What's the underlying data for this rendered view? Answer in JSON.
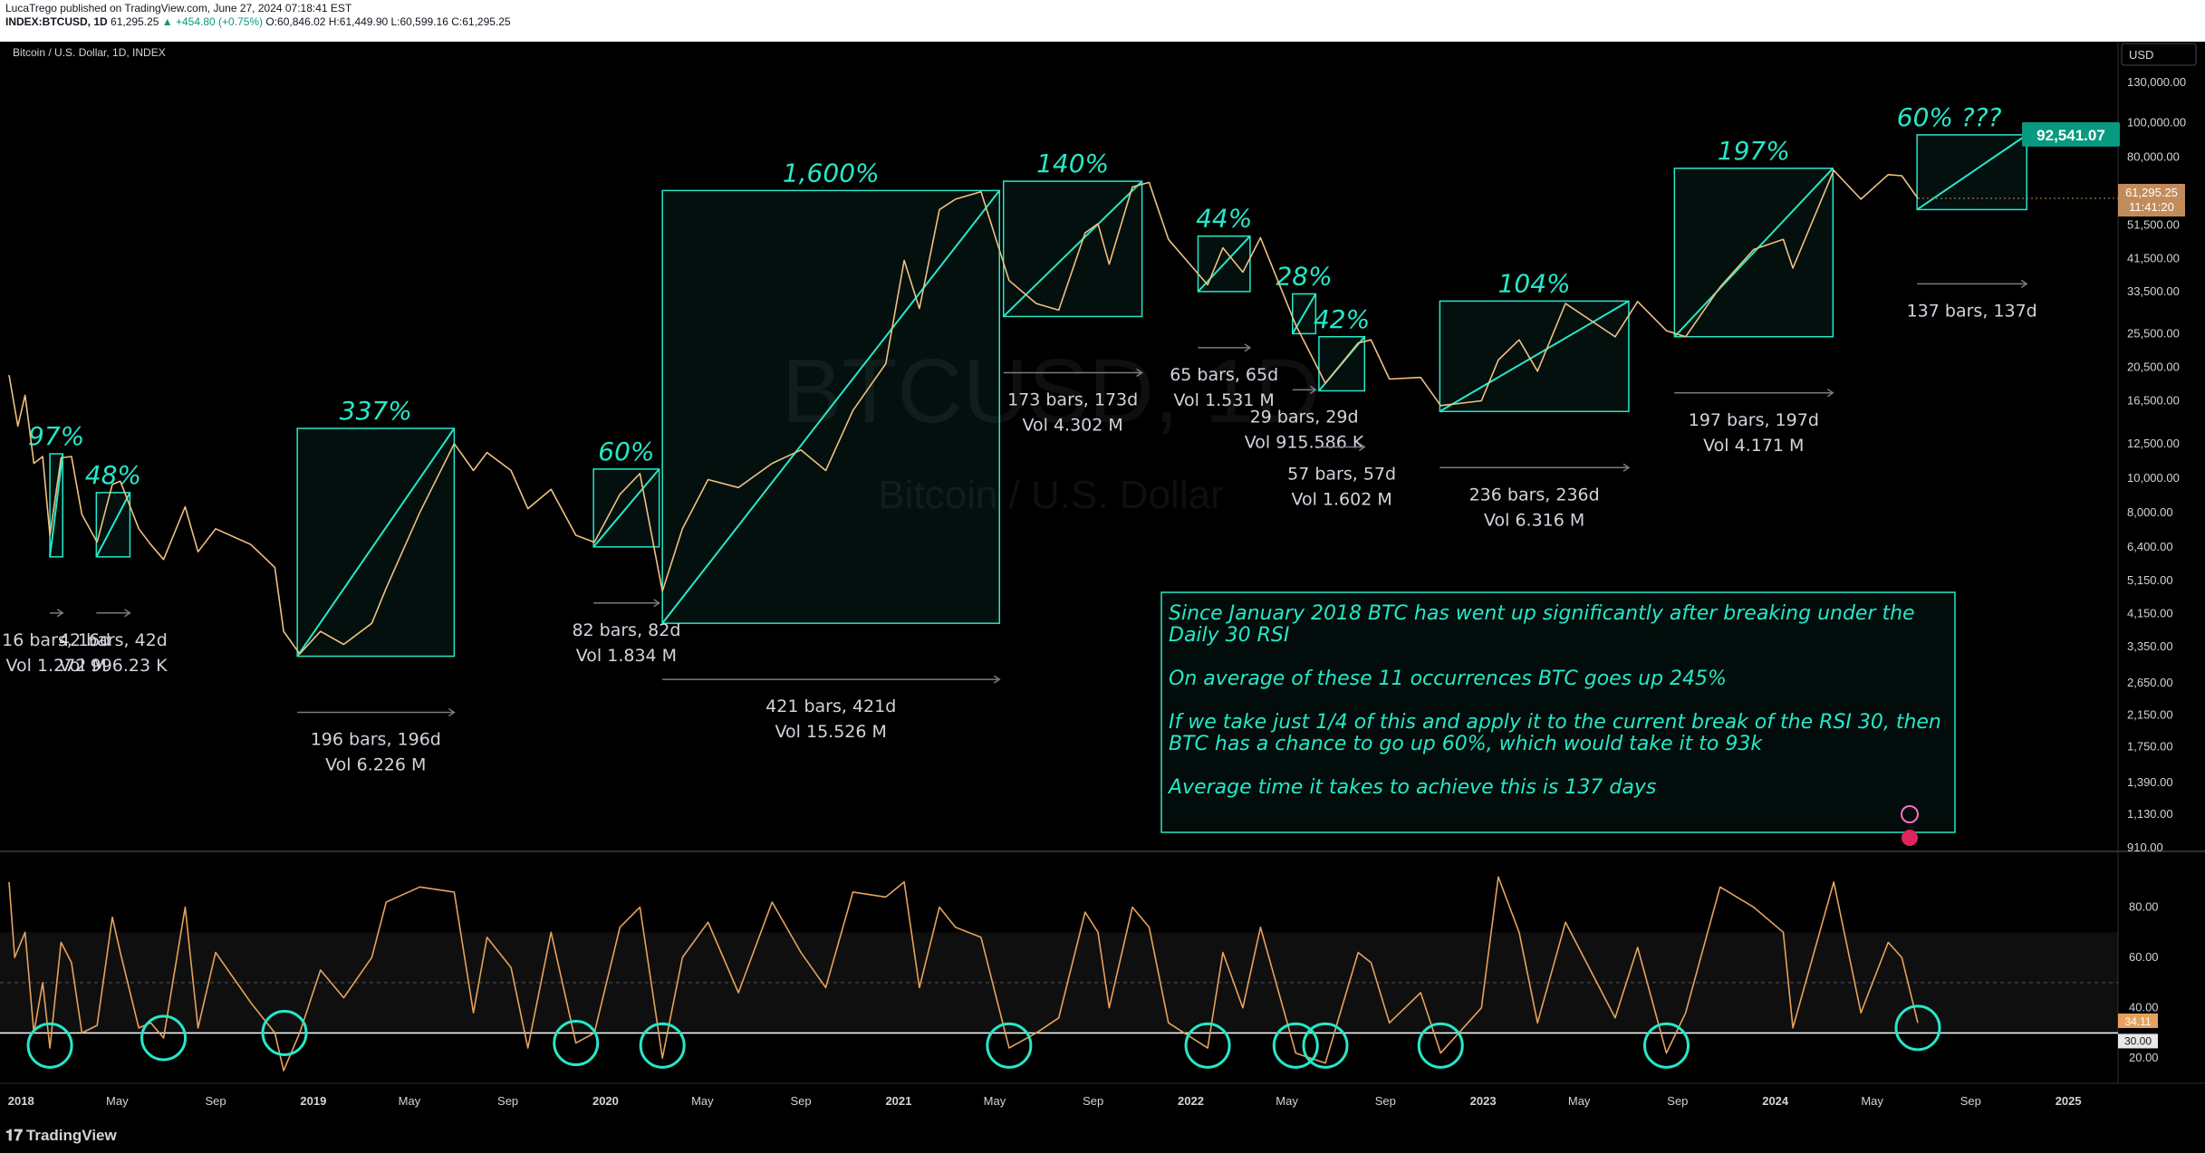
{
  "header": {
    "line1": "LucaTrego published on TradingView.com, June 27, 2024 07:18:41 EST",
    "symbol": "INDEX:BTCUSD, 1D",
    "price": "61,295.25",
    "change": "▲ +454.80 (+0.75%)",
    "ohlc": "O:60,846.02 H:61,449.90 L:60,599.16 C:61,295.25"
  },
  "chart_title": "Bitcoin / U.S. Dollar, 1D, INDEX",
  "watermark": {
    "symbol": "BTCUSD, 1D",
    "name": "Bitcoin / U.S. Dollar"
  },
  "currency": "USD",
  "brand": "TradingView",
  "colors": {
    "accent": "#26e8c8",
    "price": "#f0c080",
    "rsi": "#e6a25c",
    "up": "#089981",
    "label_bg": "#c28c5a"
  },
  "chart_data": {
    "type": "line",
    "y_scale": "log",
    "ylim": [
      910,
      130000
    ],
    "price_ticks": [
      "130,000.00",
      "100,000.00",
      "80,000.00",
      "61,295.25",
      "51,500.00",
      "41,500.00",
      "33,500.00",
      "25,500.00",
      "20,500.00",
      "16,500.00",
      "12,500.00",
      "10,000.00",
      "8,000.00",
      "6,400.00",
      "5,150.00",
      "4,150.00",
      "3,350.00",
      "2,650.00",
      "2,150.00",
      "1,750.00",
      "1,390.00",
      "1,130.00",
      "910.00"
    ],
    "price_tick_values": [
      130000,
      100000,
      80000,
      61295,
      51500,
      41500,
      33500,
      25500,
      20500,
      16500,
      12500,
      10000,
      8000,
      6400,
      5150,
      4150,
      3350,
      2650,
      2150,
      1750,
      1390,
      1130,
      910
    ],
    "last_price": {
      "price": "61,295.25",
      "countdown": "11:41:20"
    },
    "x_labels": [
      "2018",
      "May",
      "Sep",
      "2019",
      "May",
      "Sep",
      "2020",
      "May",
      "Sep",
      "2021",
      "May",
      "Sep",
      "2022",
      "May",
      "Sep",
      "2023",
      "May",
      "Sep",
      "2024",
      "May",
      "Sep",
      "2025"
    ],
    "x_label_dates": [
      "2018-01-01",
      "2018-05-01",
      "2018-09-01",
      "2019-01-01",
      "2019-05-01",
      "2019-09-01",
      "2020-01-01",
      "2020-05-01",
      "2020-09-01",
      "2021-01-01",
      "2021-05-01",
      "2021-09-01",
      "2022-01-01",
      "2022-05-01",
      "2022-09-01",
      "2023-01-01",
      "2023-05-01",
      "2023-09-01",
      "2024-01-01",
      "2024-05-01",
      "2024-09-01",
      "2025-01-01"
    ],
    "price_series": [
      [
        "2017-12-17",
        19500
      ],
      [
        "2017-12-28",
        14000
      ],
      [
        "2018-01-06",
        17100
      ],
      [
        "2018-01-17",
        11000
      ],
      [
        "2018-01-28",
        11500
      ],
      [
        "2018-02-06",
        6900
      ],
      [
        "2018-02-20",
        11400
      ],
      [
        "2018-03-05",
        11500
      ],
      [
        "2018-03-18",
        7900
      ],
      [
        "2018-04-06",
        6600
      ],
      [
        "2018-04-25",
        9600
      ],
      [
        "2018-05-05",
        9800
      ],
      [
        "2018-05-28",
        7200
      ],
      [
        "2018-06-12",
        6500
      ],
      [
        "2018-06-28",
        5900
      ],
      [
        "2018-07-25",
        8300
      ],
      [
        "2018-08-10",
        6200
      ],
      [
        "2018-09-01",
        7200
      ],
      [
        "2018-10-15",
        6500
      ],
      [
        "2018-11-14",
        5600
      ],
      [
        "2018-11-25",
        3700
      ],
      [
        "2018-12-15",
        3200
      ],
      [
        "2019-01-10",
        3700
      ],
      [
        "2019-02-08",
        3400
      ],
      [
        "2019-03-15",
        3900
      ],
      [
        "2019-04-02",
        4900
      ],
      [
        "2019-05-14",
        8000
      ],
      [
        "2019-06-26",
        12500
      ],
      [
        "2019-07-20",
        10500
      ],
      [
        "2019-08-06",
        11800
      ],
      [
        "2019-09-05",
        10500
      ],
      [
        "2019-09-26",
        8200
      ],
      [
        "2019-10-25",
        9300
      ],
      [
        "2019-11-25",
        6900
      ],
      [
        "2019-12-18",
        6600
      ],
      [
        "2020-01-19",
        9000
      ],
      [
        "2020-02-13",
        10300
      ],
      [
        "2020-03-12",
        4800
      ],
      [
        "2020-04-06",
        7200
      ],
      [
        "2020-05-08",
        9900
      ],
      [
        "2020-06-15",
        9400
      ],
      [
        "2020-07-27",
        11000
      ],
      [
        "2020-09-01",
        12000
      ],
      [
        "2020-10-02",
        10500
      ],
      [
        "2020-11-05",
        15500
      ],
      [
        "2020-12-16",
        21000
      ],
      [
        "2021-01-08",
        41000
      ],
      [
        "2021-01-27",
        30000
      ],
      [
        "2021-02-21",
        57000
      ],
      [
        "2021-03-13",
        61000
      ],
      [
        "2021-04-14",
        64000
      ],
      [
        "2021-05-19",
        36000
      ],
      [
        "2021-06-22",
        31000
      ],
      [
        "2021-07-20",
        29700
      ],
      [
        "2021-08-22",
        49000
      ],
      [
        "2021-09-07",
        52000
      ],
      [
        "2021-09-21",
        40000
      ],
      [
        "2021-10-20",
        66000
      ],
      [
        "2021-11-10",
        68000
      ],
      [
        "2021-12-04",
        47000
      ],
      [
        "2022-01-22",
        35000
      ],
      [
        "2022-02-10",
        44500
      ],
      [
        "2022-03-07",
        38000
      ],
      [
        "2022-03-29",
        47500
      ],
      [
        "2022-05-12",
        27000
      ],
      [
        "2022-06-18",
        18500
      ],
      [
        "2022-07-29",
        24000
      ],
      [
        "2022-08-14",
        24500
      ],
      [
        "2022-09-06",
        19000
      ],
      [
        "2022-10-15",
        19200
      ],
      [
        "2022-11-09",
        16000
      ],
      [
        "2022-12-30",
        16500
      ],
      [
        "2023-01-20",
        21500
      ],
      [
        "2023-02-15",
        24500
      ],
      [
        "2023-03-10",
        20000
      ],
      [
        "2023-04-14",
        31000
      ],
      [
        "2023-06-15",
        25000
      ],
      [
        "2023-07-13",
        31400
      ],
      [
        "2023-08-18",
        26000
      ],
      [
        "2023-09-11",
        25000
      ],
      [
        "2023-10-24",
        34500
      ],
      [
        "2023-12-05",
        44000
      ],
      [
        "2024-01-11",
        47000
      ],
      [
        "2024-01-23",
        39000
      ],
      [
        "2024-03-14",
        73500
      ],
      [
        "2024-04-17",
        61000
      ],
      [
        "2024-05-21",
        71500
      ],
      [
        "2024-06-07",
        71000
      ],
      [
        "2024-06-27",
        61295
      ]
    ],
    "rsi_ticks": [
      "80.00",
      "60.00",
      "40.00",
      "30.00",
      "20.00"
    ],
    "rsi_tick_values": [
      80,
      60,
      40,
      30,
      20
    ],
    "rsi_last": "34.11",
    "rsi_threshold": "30.00",
    "rsi_series": [
      [
        "2017-12-17",
        90
      ],
      [
        "2017-12-24",
        60
      ],
      [
        "2018-01-06",
        70
      ],
      [
        "2018-01-17",
        30
      ],
      [
        "2018-01-28",
        50
      ],
      [
        "2018-02-06",
        24
      ],
      [
        "2018-02-20",
        66
      ],
      [
        "2018-03-05",
        58
      ],
      [
        "2018-03-18",
        30
      ],
      [
        "2018-04-06",
        33
      ],
      [
        "2018-04-25",
        76
      ],
      [
        "2018-05-05",
        62
      ],
      [
        "2018-05-28",
        32
      ],
      [
        "2018-06-12",
        34
      ],
      [
        "2018-06-28",
        28
      ],
      [
        "2018-07-25",
        80
      ],
      [
        "2018-08-10",
        32
      ],
      [
        "2018-09-01",
        62
      ],
      [
        "2018-10-15",
        42
      ],
      [
        "2018-11-14",
        30
      ],
      [
        "2018-11-25",
        15
      ],
      [
        "2018-12-15",
        30
      ],
      [
        "2019-01-10",
        55
      ],
      [
        "2019-02-08",
        44
      ],
      [
        "2019-03-15",
        60
      ],
      [
        "2019-04-02",
        82
      ],
      [
        "2019-05-14",
        88
      ],
      [
        "2019-06-26",
        86
      ],
      [
        "2019-07-20",
        38
      ],
      [
        "2019-08-06",
        68
      ],
      [
        "2019-09-05",
        56
      ],
      [
        "2019-09-26",
        24
      ],
      [
        "2019-10-25",
        70
      ],
      [
        "2019-11-25",
        26
      ],
      [
        "2019-12-18",
        30
      ],
      [
        "2020-01-19",
        72
      ],
      [
        "2020-02-13",
        80
      ],
      [
        "2020-03-12",
        20
      ],
      [
        "2020-04-06",
        60
      ],
      [
        "2020-05-08",
        74
      ],
      [
        "2020-06-15",
        46
      ],
      [
        "2020-07-27",
        82
      ],
      [
        "2020-09-01",
        62
      ],
      [
        "2020-10-02",
        48
      ],
      [
        "2020-11-05",
        86
      ],
      [
        "2020-12-16",
        84
      ],
      [
        "2021-01-08",
        90
      ],
      [
        "2021-01-27",
        48
      ],
      [
        "2021-02-21",
        80
      ],
      [
        "2021-03-13",
        72
      ],
      [
        "2021-04-14",
        68
      ],
      [
        "2021-05-19",
        24
      ],
      [
        "2021-06-22",
        30
      ],
      [
        "2021-07-20",
        36
      ],
      [
        "2021-08-22",
        78
      ],
      [
        "2021-09-07",
        70
      ],
      [
        "2021-09-21",
        40
      ],
      [
        "2021-10-20",
        80
      ],
      [
        "2021-11-10",
        72
      ],
      [
        "2021-12-04",
        34
      ],
      [
        "2022-01-22",
        24
      ],
      [
        "2022-02-10",
        62
      ],
      [
        "2022-03-07",
        40
      ],
      [
        "2022-03-29",
        72
      ],
      [
        "2022-05-12",
        22
      ],
      [
        "2022-06-18",
        18
      ],
      [
        "2022-07-29",
        62
      ],
      [
        "2022-08-14",
        58
      ],
      [
        "2022-09-06",
        34
      ],
      [
        "2022-10-15",
        46
      ],
      [
        "2022-11-09",
        22
      ],
      [
        "2022-12-30",
        40
      ],
      [
        "2023-01-20",
        92
      ],
      [
        "2023-02-15",
        70
      ],
      [
        "2023-03-10",
        34
      ],
      [
        "2023-04-14",
        74
      ],
      [
        "2023-06-15",
        36
      ],
      [
        "2023-07-13",
        64
      ],
      [
        "2023-08-18",
        22
      ],
      [
        "2023-09-11",
        38
      ],
      [
        "2023-10-24",
        88
      ],
      [
        "2023-12-05",
        80
      ],
      [
        "2024-01-11",
        70
      ],
      [
        "2024-01-23",
        32
      ],
      [
        "2024-03-14",
        90
      ],
      [
        "2024-04-17",
        38
      ],
      [
        "2024-05-21",
        66
      ],
      [
        "2024-06-07",
        60
      ],
      [
        "2024-06-27",
        34
      ]
    ],
    "boxes": [
      {
        "pct": "97%",
        "start": "2018-02-06",
        "end": "2018-02-22",
        "low": 6000,
        "high": 11700,
        "bars": "16 bars, 16d",
        "vol": "Vol 1.272 M"
      },
      {
        "pct": "48%",
        "start": "2018-04-05",
        "end": "2018-05-17",
        "low": 6000,
        "high": 9100,
        "bars": "42 bars, 42d",
        "vol": "Vol 996.23 K"
      },
      {
        "pct": "337%",
        "start": "2018-12-12",
        "end": "2019-06-26",
        "low": 3150,
        "high": 13800,
        "bars": "196 bars, 196d",
        "vol": "Vol 6.226 M"
      },
      {
        "pct": "60%",
        "start": "2019-12-17",
        "end": "2020-03-08",
        "low": 6400,
        "high": 10600,
        "bars": "82 bars, 82d",
        "vol": "Vol 1.834 M"
      },
      {
        "pct": "1,600%",
        "start": "2020-03-12",
        "end": "2021-05-07",
        "low": 3900,
        "high": 64500,
        "bars": "421 bars, 421d",
        "vol": "Vol 15.526 M"
      },
      {
        "pct": "140%",
        "start": "2021-05-12",
        "end": "2021-11-01",
        "low": 28500,
        "high": 68500,
        "bars": "173 bars, 173d",
        "vol": "Vol 4.302 M"
      },
      {
        "pct": "44%",
        "start": "2022-01-10",
        "end": "2022-03-16",
        "low": 33500,
        "high": 48000,
        "bars": "65 bars, 65d",
        "vol": "Vol 1.531 M"
      },
      {
        "pct": "28%",
        "start": "2022-05-08",
        "end": "2022-06-06",
        "low": 25500,
        "high": 33000,
        "bars": "29 bars, 29d",
        "vol": "Vol 915.586 K"
      },
      {
        "pct": "42%",
        "start": "2022-06-10",
        "end": "2022-08-06",
        "low": 17600,
        "high": 25000,
        "bars": "57 bars, 57d",
        "vol": "Vol 1.602 M"
      },
      {
        "pct": "104%",
        "start": "2022-11-08",
        "end": "2023-07-02",
        "low": 15400,
        "high": 31500,
        "bars": "236 bars, 236d",
        "vol": "Vol 6.316 M"
      },
      {
        "pct": "197%",
        "start": "2023-08-28",
        "end": "2024-03-13",
        "low": 25000,
        "high": 74500,
        "bars": "197 bars, 197d",
        "vol": "Vol 4.171 M"
      }
    ],
    "projection": {
      "pct": "60% ???",
      "start": "2024-06-26",
      "end": "2024-11-10",
      "low": 57000,
      "high": 92541,
      "target": "92,541.07",
      "bars": "137 bars, 137d"
    },
    "rsi_circles": [
      "2018-02-06",
      "2018-06-28",
      "2018-11-26",
      "2019-11-25",
      "2020-03-12",
      "2021-05-19",
      "2022-01-22",
      "2022-05-12",
      "2022-06-18",
      "2022-11-09",
      "2023-08-18",
      "2024-06-27"
    ],
    "note": {
      "lines": [
        "Since January 2018 BTC has went up significantly after  breaking under the",
        "Daily 30 RSI",
        "",
        "On average of these 11 occurrences BTC goes up 245%",
        "",
        "If we take just 1/4 of this and apply it to the current break of the RSI 30, then",
        "BTC has a chance to go up 60%, which would take it to 93k",
        "",
        "Average time it takes to achieve this is 137 days"
      ]
    }
  }
}
